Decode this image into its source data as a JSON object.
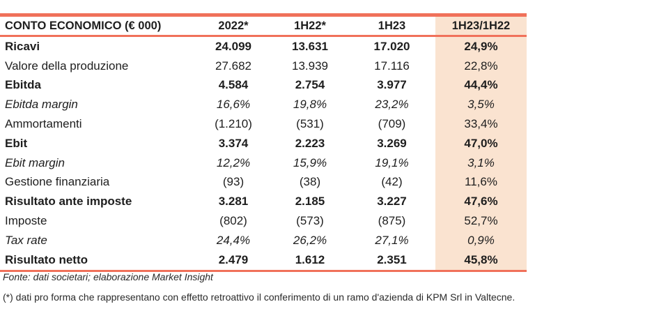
{
  "table": {
    "headers": [
      "CONTO ECONOMICO (€ 000)",
      "2022*",
      "1H22*",
      "1H23",
      "1H23/1H22"
    ],
    "rows": [
      {
        "label": "Ricavi",
        "values": [
          "24.099",
          "13.631",
          "17.020",
          "24,9%"
        ],
        "style": "bold"
      },
      {
        "label": "Valore della produzione",
        "values": [
          "27.682",
          "13.939",
          "17.116",
          "22,8%"
        ],
        "style": "normal"
      },
      {
        "label": "Ebitda",
        "values": [
          "4.584",
          "2.754",
          "3.977",
          "44,4%"
        ],
        "style": "bold"
      },
      {
        "label": "Ebitda margin",
        "values": [
          "16,6%",
          "19,8%",
          "23,2%",
          "3,5%"
        ],
        "style": "italic"
      },
      {
        "label": "Ammortamenti",
        "values": [
          "(1.210)",
          "(531)",
          "(709)",
          "33,4%"
        ],
        "style": "normal"
      },
      {
        "label": "Ebit",
        "values": [
          "3.374",
          "2.223",
          "3.269",
          "47,0%"
        ],
        "style": "bold"
      },
      {
        "label": "Ebit margin",
        "values": [
          "12,2%",
          "15,9%",
          "19,1%",
          "3,1%"
        ],
        "style": "italic"
      },
      {
        "label": "Gestione finanziaria",
        "values": [
          "(93)",
          "(38)",
          "(42)",
          "11,6%"
        ],
        "style": "normal"
      },
      {
        "label": "Risultato ante imposte",
        "values": [
          "3.281",
          "2.185",
          "3.227",
          "47,6%"
        ],
        "style": "bold"
      },
      {
        "label": "Imposte",
        "values": [
          "(802)",
          "(573)",
          "(875)",
          "52,7%"
        ],
        "style": "normal"
      },
      {
        "label": "Tax rate",
        "values": [
          "24,4%",
          "26,2%",
          "27,1%",
          "0,9%"
        ],
        "style": "italic"
      },
      {
        "label": "Risultato netto",
        "values": [
          "2.479",
          "1.612",
          "2.351",
          "45,8%"
        ],
        "style": "bold"
      }
    ]
  },
  "source": "Fonte: dati societari; elaborazione Market Insight",
  "note": "(*) dati pro forma  che rappresentano con effetto retroattivo il conferimento di un ramo d'azienda di KPM Srl in Valtecne.",
  "colors": {
    "accent": "#f0715a",
    "highlight": "#fae3d0"
  }
}
